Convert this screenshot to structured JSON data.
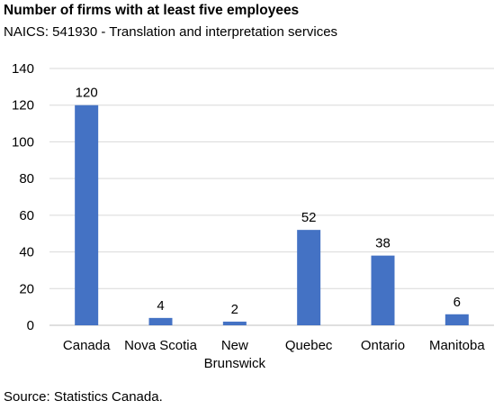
{
  "title": "Number of firms with at least five employees",
  "subtitle": "NAICS: 541930 - Translation and interpretation services",
  "source": "Source: Statistics Canada.",
  "chart_data": {
    "type": "bar",
    "title": "Number of firms with at least five employees",
    "subtitle": "NAICS: 541930 - Translation and interpretation services",
    "categories": [
      "Canada",
      "Nova Scotia",
      "New Brunswick",
      "Quebec",
      "Ontario",
      "Manitoba"
    ],
    "category_lines": [
      [
        "Canada"
      ],
      [
        "Nova Scotia"
      ],
      [
        "New",
        "Brunswick"
      ],
      [
        "Quebec"
      ],
      [
        "Ontario"
      ],
      [
        "Manitoba"
      ]
    ],
    "values": [
      120,
      4,
      2,
      52,
      38,
      6
    ],
    "data_labels": [
      "120",
      "4",
      "2",
      "52",
      "38",
      "6"
    ],
    "yticks": [
      0,
      20,
      40,
      60,
      80,
      100,
      120,
      140
    ],
    "ylim": [
      0,
      140
    ],
    "xlabel": "",
    "ylabel": "",
    "grid": true,
    "legend": "none",
    "bar_color": "#4472C4",
    "grid_color": "#D9D9D9"
  }
}
